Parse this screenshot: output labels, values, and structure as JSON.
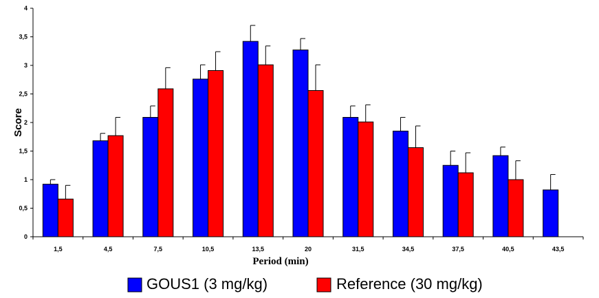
{
  "chart_data": {
    "type": "bar",
    "xlabel": "Period (min)",
    "ylabel": "Score",
    "ylim": [
      0,
      4
    ],
    "y_ticks": [
      "0",
      "0,5",
      "1",
      "1,5",
      "2",
      "2,5",
      "3",
      "3,5",
      "4"
    ],
    "categories": [
      "1,5",
      "4,5",
      "7,5",
      "10,5",
      "13,5",
      "20",
      "31,5",
      "34,5",
      "37,5",
      "40,5",
      "43,5"
    ],
    "grid": false,
    "legend_position": "bottom",
    "series": [
      {
        "name": "GOUS1 (3 mg/kg)",
        "color": "#0000ff",
        "values": [
          0.92,
          1.68,
          2.09,
          2.76,
          3.42,
          3.27,
          2.09,
          1.85,
          1.25,
          1.42,
          0.82
        ],
        "errors": [
          0.08,
          0.13,
          0.2,
          0.25,
          0.28,
          0.2,
          0.2,
          0.24,
          0.25,
          0.15,
          0.27
        ]
      },
      {
        "name": "Reference (30 mg/kg)",
        "color": "#ff0000",
        "values": [
          0.66,
          1.77,
          2.59,
          2.91,
          3.01,
          2.56,
          2.01,
          1.56,
          1.12,
          1.0,
          null
        ],
        "errors": [
          0.24,
          0.32,
          0.37,
          0.33,
          0.33,
          0.45,
          0.3,
          0.38,
          0.35,
          0.33,
          null
        ]
      }
    ]
  }
}
